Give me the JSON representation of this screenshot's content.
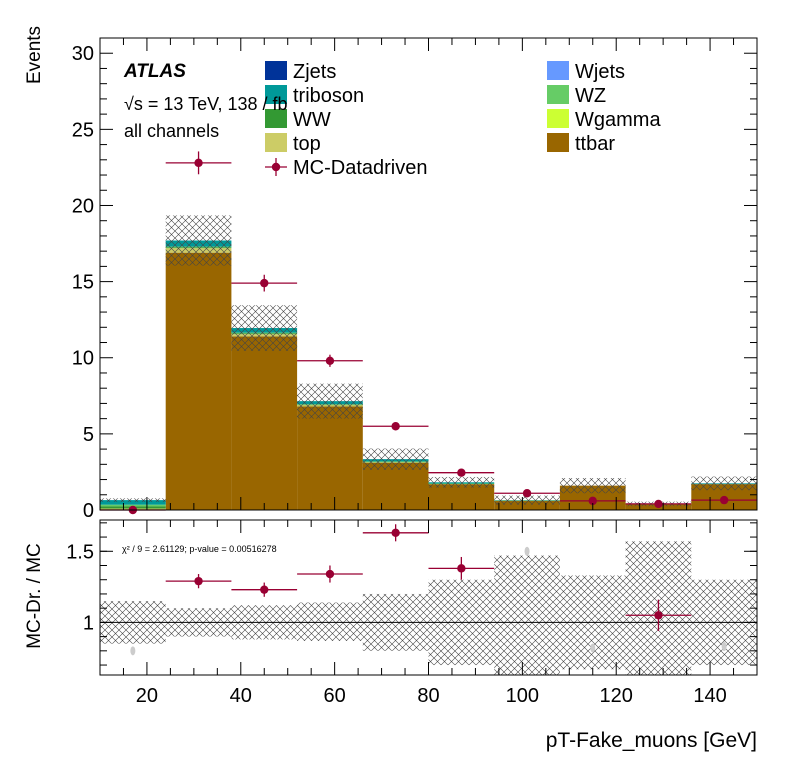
{
  "chart_data": [
    {
      "type": "bar",
      "stacked": true,
      "title": "",
      "xlabel": "pT-Fake_muons [GeV]",
      "ylabel": "Events",
      "xlim": [
        10,
        150
      ],
      "ylim": [
        0,
        31
      ],
      "bin_edges": [
        10,
        24,
        38,
        52,
        66,
        80,
        94,
        108,
        122,
        136,
        150
      ],
      "atlas_label": "ATLAS",
      "energy_label": "√s = 13 TeV, 138 / fb",
      "channel_label": "all channels",
      "series": [
        {
          "name": "ttbar",
          "color": "#996600",
          "values": [
            0.0,
            16.9,
            11.4,
            6.8,
            3.1,
            1.7,
            0.6,
            1.6,
            0.4,
            1.7
          ]
        },
        {
          "name": "top",
          "color": "#cccc66",
          "values": [
            0.1,
            0.3,
            0.15,
            0.1,
            0.05,
            0.03,
            0.02,
            0.0,
            0.0,
            0.0
          ]
        },
        {
          "name": "WW",
          "color": "#339933",
          "values": [
            0.15,
            0.05,
            0.05,
            0.02,
            0.02,
            0.0,
            0.0,
            0.0,
            0.0,
            0.0
          ]
        },
        {
          "name": "Wgamma",
          "color": "#ccff33",
          "values": [
            0.0,
            0.0,
            0.0,
            0.0,
            0.0,
            0.0,
            0.0,
            0.0,
            0.0,
            0.0
          ]
        },
        {
          "name": "WZ",
          "color": "#66cc66",
          "values": [
            0.1,
            0.05,
            0.05,
            0.03,
            0.02,
            0.01,
            0.0,
            0.0,
            0.0,
            0.0
          ]
        },
        {
          "name": "triboson",
          "color": "#009999",
          "values": [
            0.3,
            0.4,
            0.3,
            0.2,
            0.15,
            0.08,
            0.03,
            0.0,
            0.0,
            0.05
          ]
        },
        {
          "name": "Wjets",
          "color": "#6699ff",
          "values": [
            0.0,
            0.0,
            0.0,
            0.0,
            0.0,
            0.0,
            0.0,
            0.0,
            0.0,
            0.0
          ]
        },
        {
          "name": "Zjets",
          "color": "#003399",
          "values": [
            0.0,
            0.0,
            0.0,
            0.0,
            0.0,
            0.0,
            0.0,
            0.0,
            0.0,
            0.0
          ]
        }
      ],
      "mc_uncertainty": [
        0.12,
        1.65,
        1.5,
        1.15,
        0.7,
        0.35,
        0.3,
        0.5,
        0.15,
        0.45
      ],
      "data": {
        "name": "MC-Datadriven",
        "color": "#990033",
        "x": [
          17,
          31,
          45,
          59,
          73,
          87,
          101,
          115,
          129,
          143
        ],
        "y": [
          0.0,
          22.8,
          14.9,
          9.8,
          5.5,
          2.45,
          1.1,
          0.6,
          0.4,
          0.65
        ],
        "yerr": [
          0.05,
          0.75,
          0.55,
          0.4,
          0.25,
          0.2,
          0.1,
          0.1,
          0.08,
          0.1
        ],
        "xerr": 7
      },
      "legend": {
        "left": [
          "Zjets",
          "triboson",
          "WW",
          "top",
          "MC-Datadriven"
        ],
        "right": [
          "Wjets",
          "WZ",
          "Wgamma",
          "ttbar"
        ]
      },
      "yticks": [
        0,
        5,
        10,
        15,
        20,
        25,
        30
      ]
    },
    {
      "type": "scatter",
      "title": "",
      "xlabel": "pT-Fake_muons [GeV]",
      "ylabel": "MC-Dr. / MC",
      "xlim": [
        10,
        150
      ],
      "ylim": [
        0.63,
        1.72
      ],
      "reference_line": 1,
      "annotation": "χ² / 9 = 2.61129; p-value = 0.00516278",
      "bin_edges": [
        10,
        24,
        38,
        52,
        66,
        80,
        94,
        108,
        122,
        136,
        150
      ],
      "band_low": [
        0.85,
        0.9,
        0.88,
        0.87,
        0.8,
        0.7,
        0.63,
        0.67,
        0.63,
        0.7
      ],
      "band_high": [
        1.15,
        1.1,
        1.12,
        1.14,
        1.2,
        1.3,
        1.47,
        1.33,
        1.57,
        1.3
      ],
      "ratio": {
        "x": [
          31,
          45,
          59,
          73,
          87,
          129
        ],
        "y": [
          1.29,
          1.23,
          1.34,
          1.63,
          1.38,
          1.05
        ],
        "yerr": [
          0.03,
          0.03,
          0.04,
          0.04,
          0.06,
          0.09
        ]
      },
      "offscale_markers": {
        "x": [
          17,
          101,
          115,
          143
        ],
        "y": [
          0.8,
          1.5,
          0.82,
          0.83
        ]
      },
      "yticks": [
        1,
        1.5
      ],
      "xticks": [
        20,
        40,
        60,
        80,
        100,
        120,
        140
      ]
    }
  ]
}
